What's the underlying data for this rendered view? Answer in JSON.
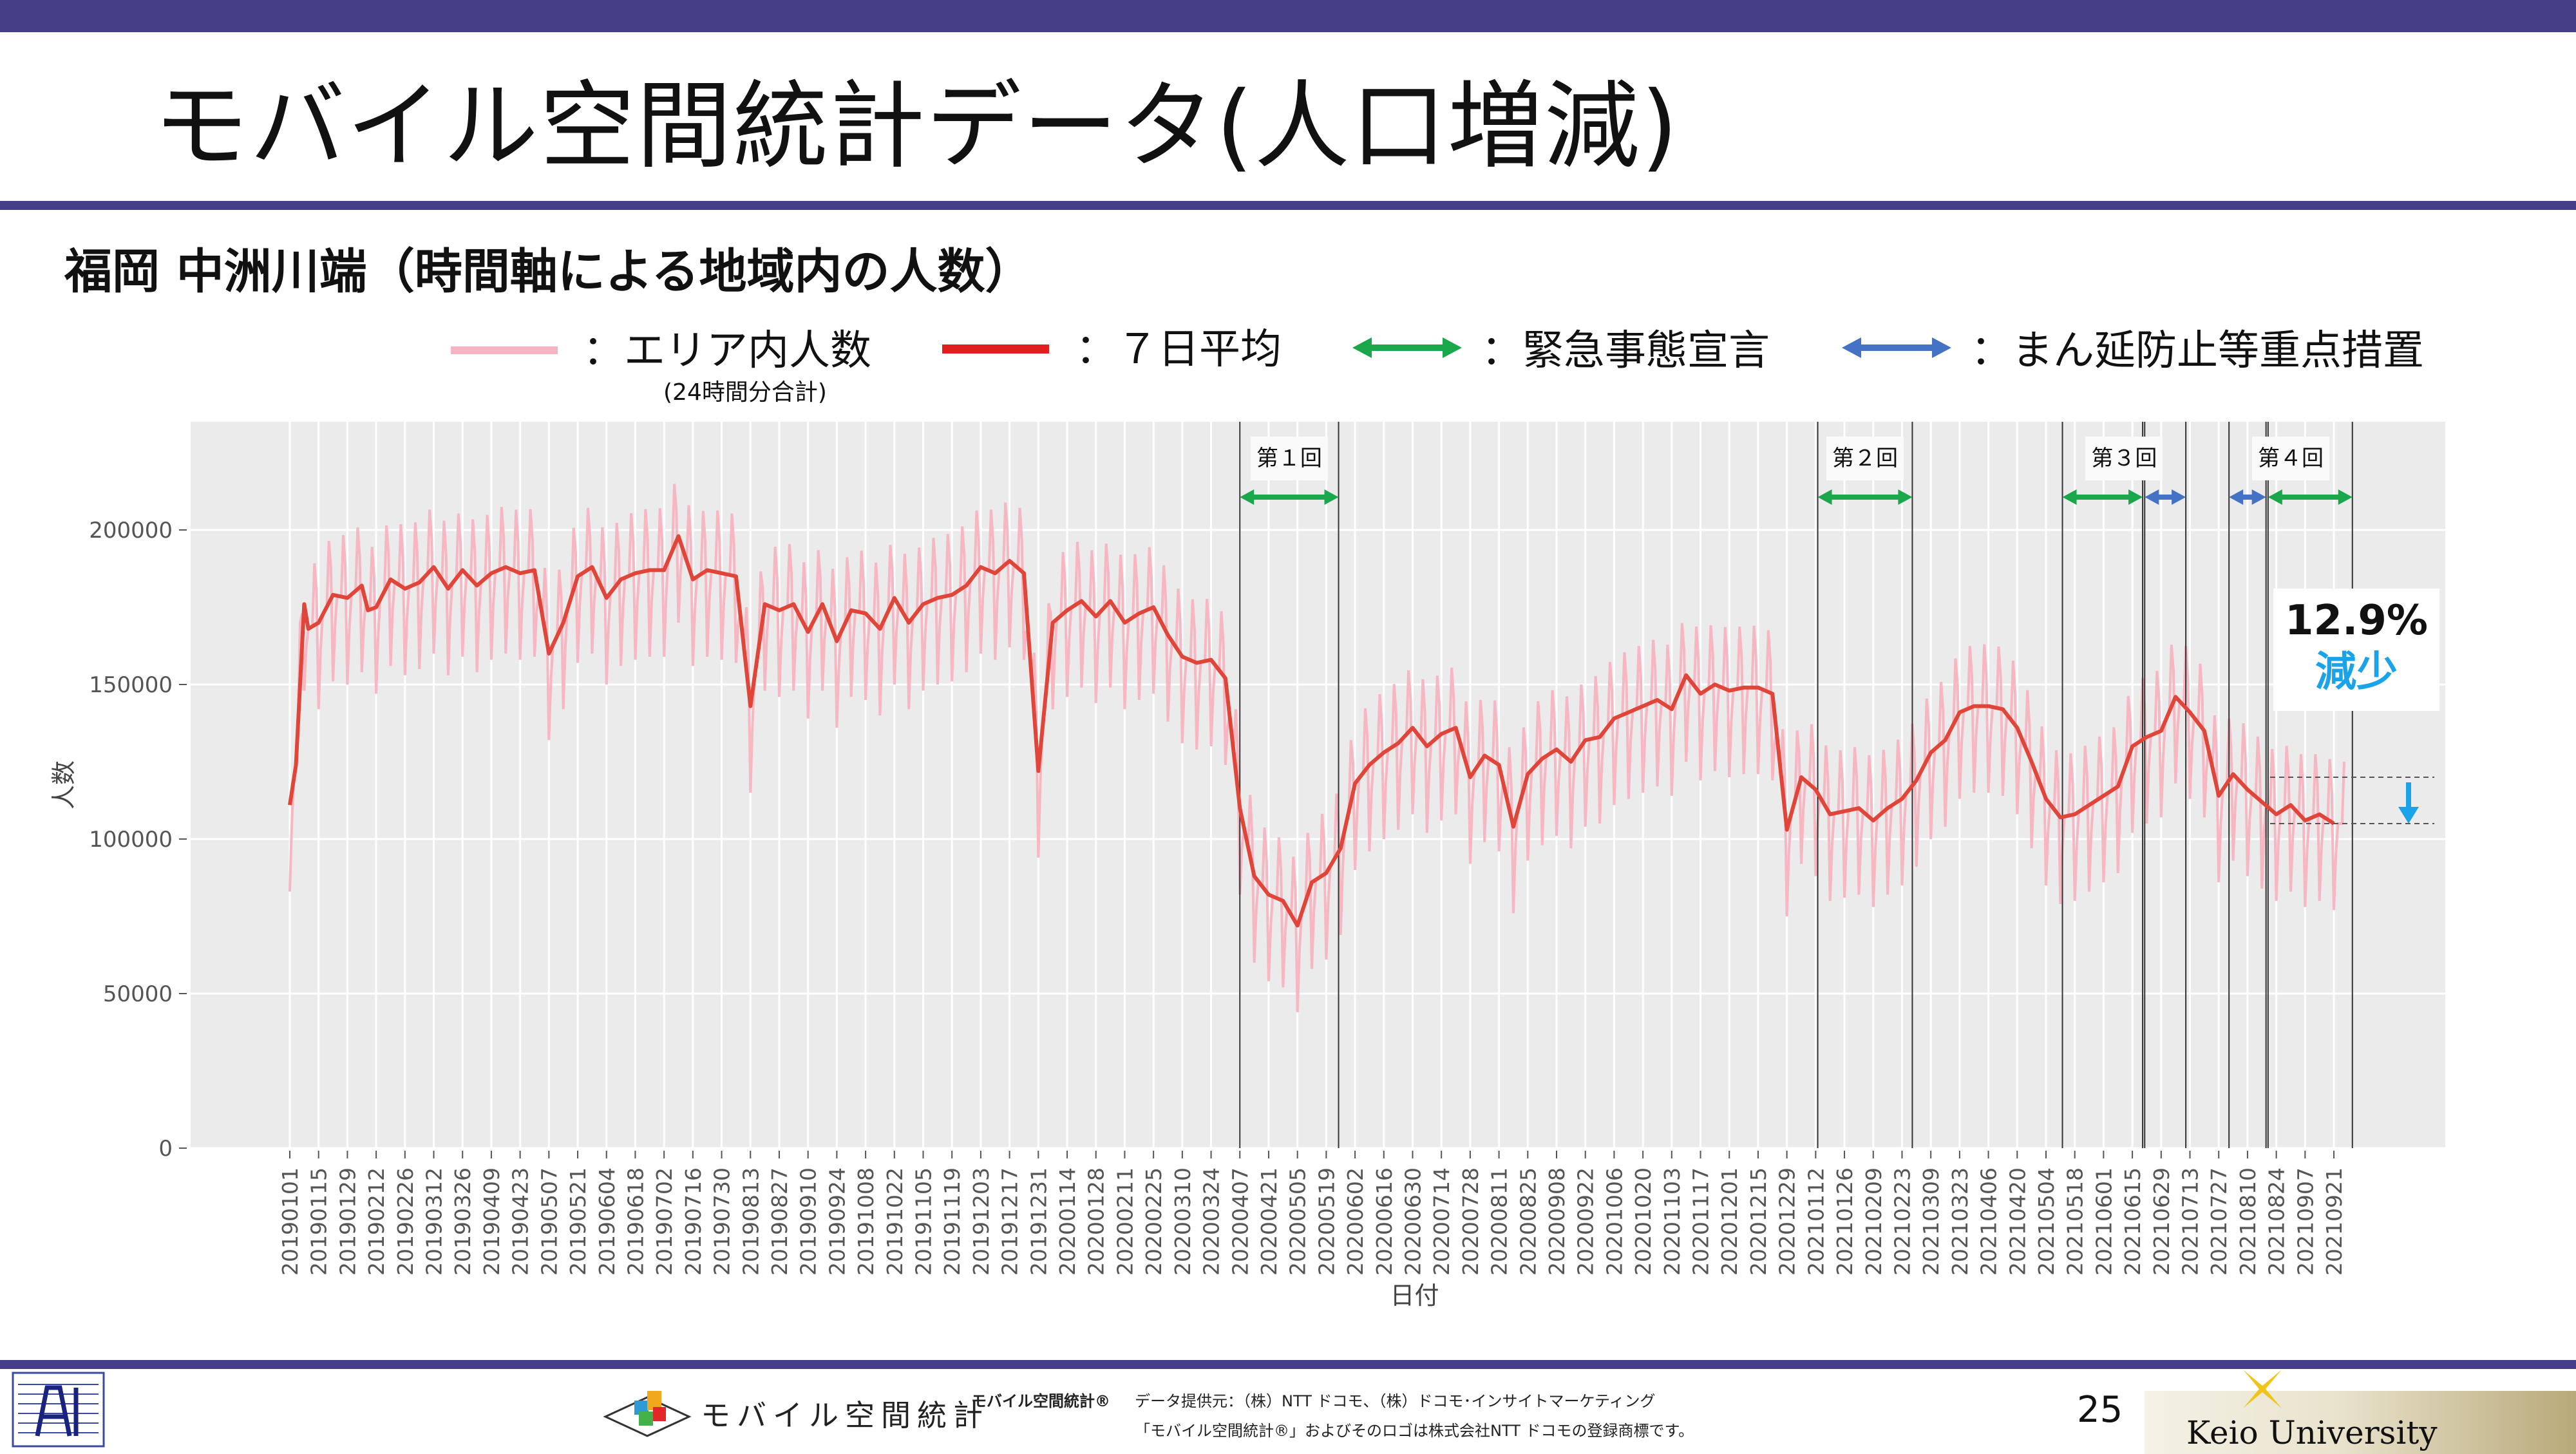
{
  "slide": {
    "title": "モバイル空間統計データ(人口増減)",
    "subtitle": "福岡 中洲川端（時間軸による地域内の人数）",
    "page_number": "25"
  },
  "legend": {
    "area_label": "：エリア内人数",
    "area_sub": "(24時間分合計)",
    "ma_label": "：７日平均",
    "emergency_label": "：緊急事態宣言",
    "priority_label": "：まん延防止等重点措置"
  },
  "annotation": {
    "percent": "12.9%",
    "word": "減少"
  },
  "footer": {
    "logo_text": "モバイル空間統計",
    "registered": "モバイル空間統計®",
    "credit_line1": "データ提供元：（株）NTT ドコモ、（株）ドコモ･インサイトマーケティング",
    "credit_line2": "「モバイル空間統計®」およびそのロゴは株式会社NTT ドコモの登録商標です。",
    "university": "Keio University"
  },
  "colors": {
    "header_bar": "#443f86",
    "area_series": "#f7b3c0",
    "ma_series": "#e0453a",
    "emergency": "#1aa64b",
    "priority": "#4472c4",
    "arrow_down": "#1aa3e8",
    "percent_blue": "#1aa3e8",
    "plot_bg": "#ebebeb"
  },
  "chart_data": {
    "type": "line",
    "xlabel": "日付",
    "ylabel": "人数",
    "ylim": [
      0,
      235000
    ],
    "yticks": [
      0,
      50000,
      100000,
      150000,
      200000
    ],
    "xticks": [
      "20190101",
      "20190115",
      "20190129",
      "20190212",
      "20190226",
      "20190312",
      "20190326",
      "20190409",
      "20190423",
      "20190507",
      "20190521",
      "20190604",
      "20190618",
      "20190702",
      "20190716",
      "20190730",
      "20190813",
      "20190827",
      "20190910",
      "20190924",
      "20191008",
      "20191022",
      "20191105",
      "20191119",
      "20191203",
      "20191217",
      "20191231",
      "20200114",
      "20200128",
      "20200211",
      "20200225",
      "20200310",
      "20200324",
      "20200407",
      "20200421",
      "20200505",
      "20200519",
      "20200602",
      "20200616",
      "20200630",
      "20200714",
      "20200728",
      "20200811",
      "20200825",
      "20200908",
      "20200922",
      "20201006",
      "20201020",
      "20201103",
      "20201117",
      "20201201",
      "20201215",
      "20201229",
      "20210112",
      "20210126",
      "20210209",
      "20210223",
      "20210309",
      "20210323",
      "20210406",
      "20210420",
      "20210504",
      "20210518",
      "20210601",
      "20210615",
      "20210629",
      "20210713",
      "20210727",
      "20210810",
      "20210824",
      "20210907",
      "20210921"
    ],
    "grid": true,
    "legend": "top",
    "series": [
      {
        "name": "７日平均",
        "points": [
          [
            "20190101",
            111000
          ],
          [
            "20190104",
            124000
          ],
          [
            "20190108",
            176000
          ],
          [
            "20190110",
            168000
          ],
          [
            "20190115",
            170000
          ],
          [
            "20190122",
            179000
          ],
          [
            "20190129",
            178000
          ],
          [
            "20190205",
            182000
          ],
          [
            "20190208",
            174000
          ],
          [
            "20190212",
            175000
          ],
          [
            "20190219",
            184000
          ],
          [
            "20190226",
            181000
          ],
          [
            "20190305",
            183000
          ],
          [
            "20190312",
            188000
          ],
          [
            "20190319",
            181000
          ],
          [
            "20190326",
            187000
          ],
          [
            "20190402",
            182000
          ],
          [
            "20190409",
            186000
          ],
          [
            "20190416",
            188000
          ],
          [
            "20190423",
            186000
          ],
          [
            "20190430",
            187000
          ],
          [
            "20190507",
            160000
          ],
          [
            "20190514",
            170000
          ],
          [
            "20190521",
            185000
          ],
          [
            "20190528",
            188000
          ],
          [
            "20190604",
            178000
          ],
          [
            "20190611",
            184000
          ],
          [
            "20190618",
            186000
          ],
          [
            "20190625",
            187000
          ],
          [
            "20190702",
            187000
          ],
          [
            "20190709",
            198000
          ],
          [
            "20190716",
            184000
          ],
          [
            "20190723",
            187000
          ],
          [
            "20190730",
            186000
          ],
          [
            "20190806",
            185000
          ],
          [
            "20190813",
            143000
          ],
          [
            "20190820",
            176000
          ],
          [
            "20190827",
            174000
          ],
          [
            "20190903",
            176000
          ],
          [
            "20190910",
            167000
          ],
          [
            "20190917",
            176000
          ],
          [
            "20190924",
            164000
          ],
          [
            "20191001",
            174000
          ],
          [
            "20191008",
            173000
          ],
          [
            "20191015",
            168000
          ],
          [
            "20191022",
            178000
          ],
          [
            "20191029",
            170000
          ],
          [
            "20191105",
            176000
          ],
          [
            "20191112",
            178000
          ],
          [
            "20191119",
            179000
          ],
          [
            "20191126",
            182000
          ],
          [
            "20191203",
            188000
          ],
          [
            "20191210",
            186000
          ],
          [
            "20191217",
            190000
          ],
          [
            "20191224",
            186000
          ],
          [
            "20191231",
            122000
          ],
          [
            "20200107",
            170000
          ],
          [
            "20200114",
            174000
          ],
          [
            "20200121",
            177000
          ],
          [
            "20200128",
            172000
          ],
          [
            "20200204",
            177000
          ],
          [
            "20200211",
            170000
          ],
          [
            "20200218",
            173000
          ],
          [
            "20200225",
            175000
          ],
          [
            "20200303",
            166000
          ],
          [
            "20200310",
            159000
          ],
          [
            "20200317",
            157000
          ],
          [
            "20200324",
            158000
          ],
          [
            "20200331",
            152000
          ],
          [
            "20200407",
            110000
          ],
          [
            "20200414",
            88000
          ],
          [
            "20200421",
            82000
          ],
          [
            "20200428",
            80000
          ],
          [
            "20200505",
            72000
          ],
          [
            "20200512",
            86000
          ],
          [
            "20200519",
            89000
          ],
          [
            "20200526",
            97000
          ],
          [
            "20200602",
            118000
          ],
          [
            "20200609",
            124000
          ],
          [
            "20200616",
            128000
          ],
          [
            "20200623",
            131000
          ],
          [
            "20200630",
            136000
          ],
          [
            "20200707",
            130000
          ],
          [
            "20200714",
            134000
          ],
          [
            "20200721",
            136000
          ],
          [
            "20200728",
            120000
          ],
          [
            "20200804",
            127000
          ],
          [
            "20200811",
            124000
          ],
          [
            "20200818",
            104000
          ],
          [
            "20200825",
            121000
          ],
          [
            "20200901",
            126000
          ],
          [
            "20200908",
            129000
          ],
          [
            "20200915",
            125000
          ],
          [
            "20200922",
            132000
          ],
          [
            "20200929",
            133000
          ],
          [
            "20201006",
            139000
          ],
          [
            "20201013",
            141000
          ],
          [
            "20201020",
            143000
          ],
          [
            "20201027",
            145000
          ],
          [
            "20201103",
            142000
          ],
          [
            "20201110",
            153000
          ],
          [
            "20201117",
            147000
          ],
          [
            "20201124",
            150000
          ],
          [
            "20201201",
            148000
          ],
          [
            "20201208",
            149000
          ],
          [
            "20201215",
            149000
          ],
          [
            "20201222",
            147000
          ],
          [
            "20201229",
            103000
          ],
          [
            "20210105",
            120000
          ],
          [
            "20210112",
            116000
          ],
          [
            "20210119",
            108000
          ],
          [
            "20210126",
            109000
          ],
          [
            "20210202",
            110000
          ],
          [
            "20210209",
            106000
          ],
          [
            "20210216",
            110000
          ],
          [
            "20210223",
            113000
          ],
          [
            "20210302",
            119000
          ],
          [
            "20210309",
            128000
          ],
          [
            "20210316",
            132000
          ],
          [
            "20210323",
            141000
          ],
          [
            "20210330",
            143000
          ],
          [
            "20210406",
            143000
          ],
          [
            "20210413",
            142000
          ],
          [
            "20210420",
            136000
          ],
          [
            "20210427",
            125000
          ],
          [
            "20210504",
            113000
          ],
          [
            "20210511",
            107000
          ],
          [
            "20210518",
            108000
          ],
          [
            "20210525",
            111000
          ],
          [
            "20210601",
            114000
          ],
          [
            "20210608",
            117000
          ],
          [
            "20210615",
            130000
          ],
          [
            "20210622",
            133000
          ],
          [
            "20210629",
            135000
          ],
          [
            "20210706",
            146000
          ],
          [
            "20210713",
            141000
          ],
          [
            "20210720",
            135000
          ],
          [
            "20210727",
            114000
          ],
          [
            "20210803",
            121000
          ],
          [
            "20210810",
            116000
          ],
          [
            "20210817",
            112000
          ],
          [
            "20210824",
            108000
          ],
          [
            "20210831",
            111000
          ],
          [
            "20210907",
            106000
          ],
          [
            "20210914",
            108000
          ],
          [
            "20210921",
            105000
          ]
        ]
      },
      {
        "name": "エリア内人数",
        "note_envelope": "daily values oscillate around the 7-day average",
        "daily_range": {
          "low_offset": -28000,
          "high_offset": 20000
        }
      }
    ],
    "events": [
      {
        "label": "第１回",
        "start": "20200407",
        "end": "20200525",
        "emergency": [
          "20200407",
          "20200525"
        ]
      },
      {
        "label": "第２回",
        "start": "20210113",
        "end": "20210228",
        "emergency": [
          "20210113",
          "20210228"
        ]
      },
      {
        "label": "第３回",
        "start": "20210512",
        "end": "20210711",
        "emergency": [
          "20210512",
          "20210620"
        ],
        "priority": [
          "20210621",
          "20210711"
        ]
      },
      {
        "label": "第４回",
        "start": "20210801",
        "end": "20210930",
        "priority": [
          "20210801",
          "20210819"
        ],
        "emergency": [
          "20210820",
          "20210930"
        ]
      }
    ],
    "reference_levels": [
      120000,
      105000
    ]
  }
}
